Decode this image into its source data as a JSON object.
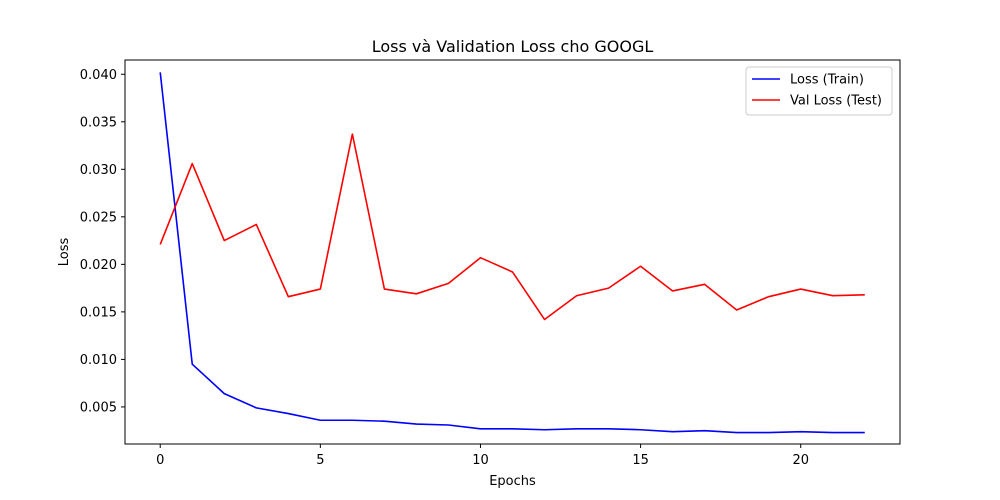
{
  "chart_data": {
    "type": "line",
    "title": "Loss và Validation Loss cho GOOGL",
    "xlabel": "Epochs",
    "ylabel": "Loss",
    "xlim": [
      -1.1,
      23.1
    ],
    "ylim": [
      0.0011,
      0.0415
    ],
    "x": [
      0,
      1,
      2,
      3,
      4,
      5,
      6,
      7,
      8,
      9,
      10,
      11,
      12,
      13,
      14,
      15,
      16,
      17,
      18,
      19,
      20,
      21,
      22
    ],
    "xticks": [
      0,
      5,
      10,
      15,
      20
    ],
    "yticks": [
      0.005,
      0.01,
      0.015,
      0.02,
      0.025,
      0.03,
      0.035,
      0.04
    ],
    "ytick_labels": [
      "0.005",
      "0.010",
      "0.015",
      "0.020",
      "0.025",
      "0.030",
      "0.035",
      "0.040"
    ],
    "xtick_labels": [
      "0",
      "5",
      "10",
      "15",
      "20"
    ],
    "grid": false,
    "legend": "top-right",
    "series": [
      {
        "name": "Loss (Train)",
        "color": "#0000ff",
        "values": [
          0.0402,
          0.0095,
          0.0064,
          0.0049,
          0.0043,
          0.0036,
          0.0036,
          0.0035,
          0.0032,
          0.0031,
          0.0027,
          0.0027,
          0.0026,
          0.0027,
          0.0027,
          0.0026,
          0.0024,
          0.0025,
          0.0023,
          0.0023,
          0.0024,
          0.0023,
          0.0023
        ]
      },
      {
        "name": "Val Loss (Test)",
        "color": "#ff0000",
        "values": [
          0.0221,
          0.0306,
          0.0225,
          0.0242,
          0.0166,
          0.0174,
          0.0337,
          0.0174,
          0.0169,
          0.018,
          0.0207,
          0.0192,
          0.0142,
          0.0167,
          0.0175,
          0.0198,
          0.0172,
          0.0179,
          0.0152,
          0.0166,
          0.0174,
          0.0167,
          0.0168
        ]
      }
    ]
  }
}
